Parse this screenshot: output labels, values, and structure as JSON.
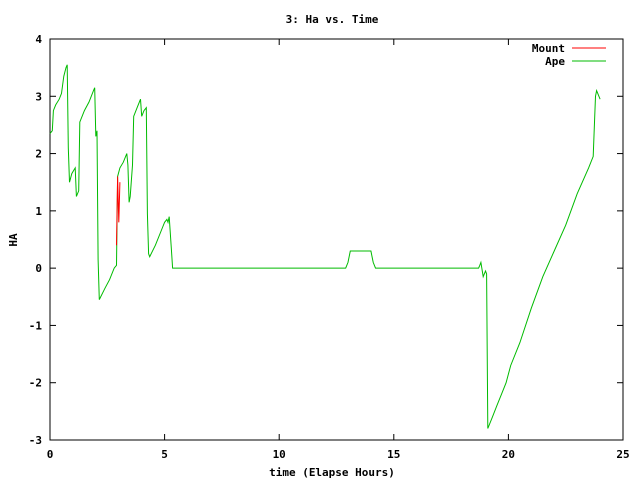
{
  "chart_data": {
    "type": "line",
    "title": "3: Ha vs. Time",
    "xlabel": "time (Elapse Hours)",
    "ylabel": "HA",
    "xlim": [
      0,
      25
    ],
    "ylim": [
      -3,
      4
    ],
    "xticks": [
      "0",
      "5",
      "10",
      "15",
      "20",
      "25"
    ],
    "yticks": [
      "-3",
      "-2",
      "-1",
      "0",
      "1",
      "2",
      "3",
      "4"
    ],
    "grid": false,
    "legend": "top-right",
    "series": [
      {
        "name": "Mount",
        "color": "#ff0000",
        "points": [
          [
            2.9,
            0.4
          ],
          [
            2.95,
            1.6
          ],
          [
            3.0,
            0.8
          ],
          [
            3.05,
            1.5
          ]
        ]
      },
      {
        "name": "Ape",
        "color": "#00bb00",
        "points": [
          [
            0,
            2.35
          ],
          [
            0.1,
            2.4
          ],
          [
            0.15,
            2.75
          ],
          [
            0.25,
            2.85
          ],
          [
            0.4,
            2.95
          ],
          [
            0.5,
            3.05
          ],
          [
            0.6,
            3.35
          ],
          [
            0.7,
            3.5
          ],
          [
            0.75,
            3.55
          ],
          [
            0.8,
            2.1
          ],
          [
            0.85,
            1.5
          ],
          [
            0.95,
            1.65
          ],
          [
            1.1,
            1.75
          ],
          [
            1.15,
            1.25
          ],
          [
            1.25,
            1.35
          ],
          [
            1.3,
            2.55
          ],
          [
            1.5,
            2.75
          ],
          [
            1.7,
            2.9
          ],
          [
            1.9,
            3.1
          ],
          [
            1.95,
            3.15
          ],
          [
            2.0,
            2.3
          ],
          [
            2.05,
            2.4
          ],
          [
            2.1,
            0.15
          ],
          [
            2.15,
            -0.55
          ],
          [
            2.4,
            -0.35
          ],
          [
            2.6,
            -0.2
          ],
          [
            2.8,
            0.0
          ],
          [
            2.9,
            0.05
          ],
          [
            2.95,
            1.6
          ],
          [
            3.05,
            1.75
          ],
          [
            3.2,
            1.85
          ],
          [
            3.35,
            2.0
          ],
          [
            3.4,
            1.8
          ],
          [
            3.45,
            1.15
          ],
          [
            3.5,
            1.25
          ],
          [
            3.6,
            1.8
          ],
          [
            3.65,
            2.65
          ],
          [
            3.8,
            2.8
          ],
          [
            3.95,
            2.95
          ],
          [
            4.0,
            2.65
          ],
          [
            4.1,
            2.75
          ],
          [
            4.2,
            2.8
          ],
          [
            4.25,
            0.95
          ],
          [
            4.3,
            0.25
          ],
          [
            4.35,
            0.2
          ],
          [
            4.6,
            0.4
          ],
          [
            4.9,
            0.7
          ],
          [
            5.0,
            0.8
          ],
          [
            5.1,
            0.85
          ],
          [
            5.15,
            0.8
          ],
          [
            5.2,
            0.9
          ],
          [
            5.3,
            0.3
          ],
          [
            5.35,
            0.0
          ],
          [
            12.9,
            0.0
          ],
          [
            13.0,
            0.1
          ],
          [
            13.1,
            0.3
          ],
          [
            14.0,
            0.3
          ],
          [
            14.1,
            0.1
          ],
          [
            14.2,
            0.0
          ],
          [
            18.7,
            0.0
          ],
          [
            18.75,
            0.05
          ],
          [
            18.8,
            0.1
          ],
          [
            18.9,
            -0.15
          ],
          [
            19.0,
            -0.05
          ],
          [
            19.05,
            -0.1
          ],
          [
            19.1,
            -2.8
          ],
          [
            19.3,
            -2.6
          ],
          [
            19.5,
            -2.4
          ],
          [
            19.7,
            -2.2
          ],
          [
            19.9,
            -2.0
          ],
          [
            20.1,
            -1.7
          ],
          [
            20.5,
            -1.3
          ],
          [
            21.0,
            -0.7
          ],
          [
            21.5,
            -0.15
          ],
          [
            22.0,
            0.3
          ],
          [
            22.5,
            0.75
          ],
          [
            23.0,
            1.3
          ],
          [
            23.5,
            1.75
          ],
          [
            23.7,
            1.95
          ],
          [
            23.75,
            2.5
          ],
          [
            23.8,
            3.0
          ],
          [
            23.85,
            3.1
          ],
          [
            24.0,
            2.95
          ]
        ]
      }
    ]
  }
}
